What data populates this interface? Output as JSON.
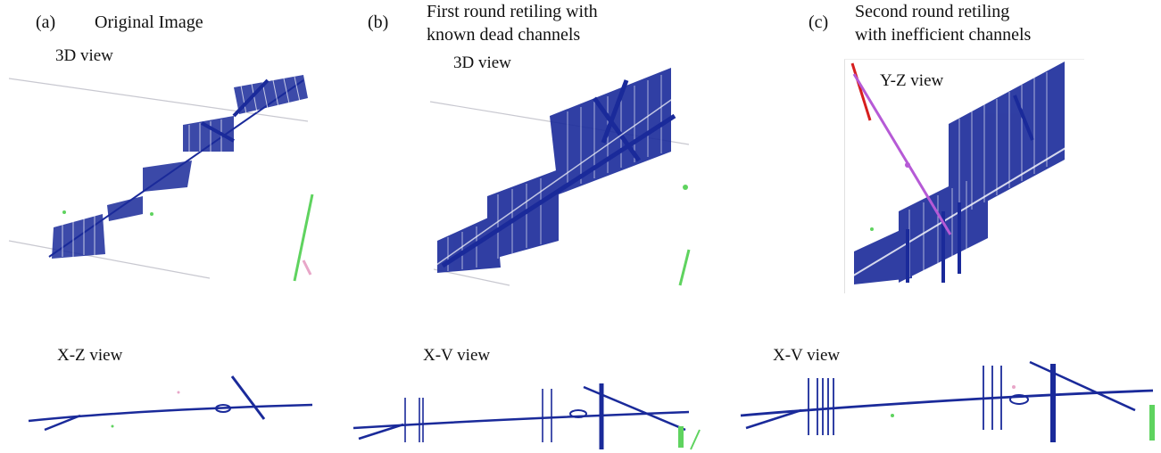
{
  "panels": {
    "a": {
      "letter": "(a)",
      "title": "Original Image",
      "top_view_label": "3D view",
      "bottom_view_label": "X-Z view"
    },
    "b": {
      "letter": "(b)",
      "title_line1": "First round retiling with",
      "title_line2": "known dead channels",
      "top_view_label": "3D view",
      "bottom_view_label": "X-V view"
    },
    "c": {
      "letter": "(c)",
      "title_line1": "Second round retiling",
      "title_line2": "with inefficient channels",
      "top_view_label": "Y-Z view",
      "bottom_view_label": "X-V view"
    }
  },
  "colors": {
    "track": "#1a2a9a",
    "track_light": "#8ea0e0",
    "cosmic_green": "#5fd35f",
    "cosmic_pink": "#e8a6c8",
    "red_track": "#d61e1e",
    "purple_track": "#b65ad6",
    "guide_line": "#c8c8d0"
  }
}
